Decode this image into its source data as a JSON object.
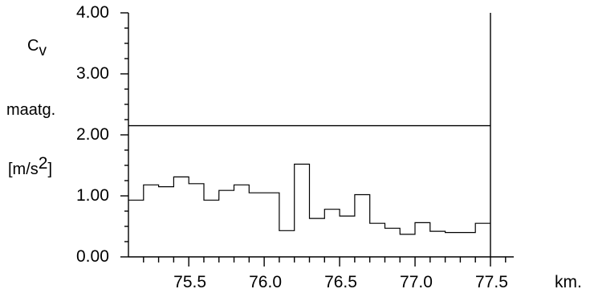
{
  "chart_data": {
    "type": "line",
    "step": true,
    "ylabel": {
      "symbol": "C",
      "symbol_subscript": "v",
      "line2": "maatg.",
      "unit_prefix": "[m/s",
      "unit_exponent": "2",
      "unit_suffix": "]"
    },
    "xunit": "km.",
    "xlim": [
      75.1,
      77.5
    ],
    "ylim": [
      0,
      4
    ],
    "yticks": [
      "0.00",
      "1.00",
      "2.00",
      "3.00",
      "4.00"
    ],
    "xticks": [
      "75.5",
      "76.0",
      "76.5",
      "77.0",
      "77.5"
    ],
    "threshold": 2.15,
    "step_width": 0.1,
    "series": [
      {
        "x": [
          75.1,
          75.2,
          75.3,
          75.4,
          75.5,
          75.6,
          75.7,
          75.8,
          75.9,
          76.0,
          76.1,
          76.2,
          76.3,
          76.4,
          76.5,
          76.6,
          76.7,
          76.8,
          76.9,
          77.0,
          77.1,
          77.2,
          77.3,
          77.4
        ],
        "y": [
          0.93,
          1.18,
          1.15,
          1.31,
          1.2,
          0.93,
          1.09,
          1.18,
          1.05,
          1.05,
          0.43,
          1.52,
          0.63,
          0.78,
          0.67,
          1.02,
          0.55,
          0.47,
          0.37,
          0.56,
          0.42,
          0.4,
          0.4,
          0.55
        ]
      }
    ],
    "grid": false
  }
}
